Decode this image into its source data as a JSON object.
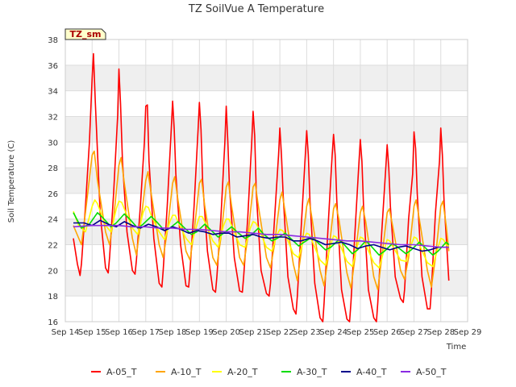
{
  "chart_data": {
    "type": "line",
    "title": "TZ SoilVue A Temperature",
    "xlabel": "Time",
    "ylabel": "Soil Temperature (C)",
    "site_badge": "TZ_sm",
    "xlim": [
      14,
      29
    ],
    "ylim": [
      16,
      38
    ],
    "x_ticks": [
      {
        "value": 14,
        "label": "Sep 14"
      },
      {
        "value": 15,
        "label": "Sep 15"
      },
      {
        "value": 16,
        "label": "Sep 16"
      },
      {
        "value": 17,
        "label": "Sep 17"
      },
      {
        "value": 18,
        "label": "Sep 18"
      },
      {
        "value": 19,
        "label": "Sep 19"
      },
      {
        "value": 20,
        "label": "Sep 20"
      },
      {
        "value": 21,
        "label": "Sep 21"
      },
      {
        "value": 22,
        "label": "Sep 22"
      },
      {
        "value": 23,
        "label": "Sep 23"
      },
      {
        "value": 24,
        "label": "Sep 24"
      },
      {
        "value": 25,
        "label": "Sep 25"
      },
      {
        "value": 26,
        "label": "Sep 26"
      },
      {
        "value": 27,
        "label": "Sep 27"
      },
      {
        "value": 28,
        "label": "Sep 28"
      },
      {
        "value": 29,
        "label": "Sep 29"
      }
    ],
    "y_ticks": [
      16,
      18,
      20,
      22,
      24,
      26,
      28,
      30,
      32,
      34,
      36,
      38
    ],
    "grid": true,
    "band_fill": "#efefef",
    "legend_position": "bottom",
    "x_unit_note": "x values are days of September 2024 (fractional day = time of day)",
    "series": [
      {
        "name": "A-05_T",
        "color": "#ff0000",
        "x": [
          14.3,
          14.45,
          14.55,
          14.6,
          14.75,
          14.9,
          15.0,
          15.05,
          15.12,
          15.3,
          15.5,
          15.6,
          15.65,
          15.8,
          15.95,
          16.0,
          16.06,
          16.13,
          16.3,
          16.5,
          16.6,
          16.65,
          16.8,
          16.95,
          17.0,
          17.06,
          17.12,
          17.3,
          17.5,
          17.6,
          17.65,
          17.8,
          17.95,
          18.0,
          18.06,
          18.12,
          18.3,
          18.5,
          18.6,
          18.65,
          18.8,
          18.95,
          19.0,
          19.06,
          19.12,
          19.3,
          19.5,
          19.6,
          19.65,
          19.8,
          19.95,
          20.0,
          20.06,
          20.12,
          20.3,
          20.5,
          20.6,
          20.65,
          20.8,
          20.95,
          21.0,
          21.06,
          21.12,
          21.3,
          21.5,
          21.6,
          21.65,
          21.8,
          21.95,
          22.0,
          22.06,
          22.12,
          22.3,
          22.5,
          22.6,
          22.65,
          22.8,
          22.95,
          23.0,
          23.06,
          23.12,
          23.3,
          23.5,
          23.6,
          23.65,
          23.8,
          23.95,
          24.0,
          24.06,
          24.12,
          24.3,
          24.5,
          24.6,
          24.65,
          24.8,
          24.95,
          25.0,
          25.06,
          25.12,
          25.3,
          25.5,
          25.6,
          25.65,
          25.8,
          25.95,
          26.0,
          26.06,
          26.12,
          26.3,
          26.5,
          26.6,
          26.65,
          26.8,
          26.95,
          27.0,
          27.06,
          27.12,
          27.3,
          27.5,
          27.6,
          27.65,
          27.8,
          27.95,
          28.0,
          28.06,
          28.12,
          28.3
        ],
        "y": [
          22.5,
          20.5,
          19.6,
          20.5,
          25.0,
          30.0,
          35.0,
          36.9,
          33.0,
          24.5,
          20.2,
          19.8,
          21.0,
          26.0,
          32.0,
          35.7,
          33.0,
          28.5,
          23.0,
          20.0,
          19.7,
          20.8,
          25.0,
          30.0,
          32.8,
          32.9,
          28.5,
          22.5,
          19.0,
          18.7,
          20.0,
          25.0,
          31.0,
          33.2,
          31.0,
          27.5,
          22.0,
          18.8,
          18.7,
          20.0,
          25.0,
          31.0,
          33.1,
          31.0,
          27.0,
          21.5,
          18.5,
          18.3,
          19.5,
          24.0,
          30.0,
          32.8,
          30.0,
          26.5,
          21.0,
          18.4,
          18.3,
          19.5,
          24.0,
          30.0,
          32.4,
          30.5,
          26.0,
          20.0,
          18.2,
          18.0,
          19.0,
          24.0,
          29.0,
          31.1,
          29.0,
          26.0,
          19.5,
          17.0,
          16.6,
          18.0,
          23.5,
          29.0,
          30.9,
          29.0,
          25.5,
          19.0,
          16.3,
          16.0,
          17.5,
          23.5,
          29.0,
          30.6,
          29.0,
          25.5,
          18.5,
          16.2,
          16.0,
          17.5,
          23.0,
          28.5,
          30.2,
          28.5,
          25.0,
          18.5,
          16.3,
          16.0,
          17.5,
          23.0,
          28.0,
          29.8,
          28.0,
          25.0,
          19.5,
          17.8,
          17.5,
          18.5,
          24.0,
          27.5,
          30.8,
          29.5,
          26.0,
          19.5,
          17.0,
          17.0,
          18.5,
          24.5,
          28.5,
          31.1,
          29.0,
          25.5,
          19.2
        ]
      },
      {
        "name": "A-10_T",
        "color": "#ffa500",
        "x": [
          14.3,
          14.6,
          14.75,
          15.0,
          15.08,
          15.2,
          15.5,
          15.65,
          15.8,
          16.0,
          16.08,
          16.2,
          16.5,
          16.65,
          16.8,
          17.0,
          17.08,
          17.2,
          17.5,
          17.65,
          17.8,
          18.0,
          18.08,
          18.2,
          18.5,
          18.65,
          18.8,
          19.0,
          19.08,
          19.2,
          19.5,
          19.65,
          19.8,
          20.0,
          20.08,
          20.2,
          20.5,
          20.65,
          20.8,
          21.0,
          21.08,
          21.2,
          21.5,
          21.65,
          21.8,
          22.0,
          22.08,
          22.2,
          22.5,
          22.65,
          22.8,
          23.0,
          23.08,
          23.2,
          23.5,
          23.65,
          23.8,
          24.0,
          24.08,
          24.2,
          24.5,
          24.65,
          24.8,
          25.0,
          25.08,
          25.2,
          25.5,
          25.65,
          25.8,
          26.0,
          26.08,
          26.2,
          26.5,
          26.65,
          26.8,
          27.0,
          27.08,
          27.2,
          27.5,
          27.65,
          27.8,
          28.0,
          28.08,
          28.2,
          28.3
        ],
        "y": [
          23.5,
          22.0,
          24.5,
          29.0,
          29.3,
          27.0,
          23.0,
          22.0,
          24.0,
          28.2,
          28.8,
          26.8,
          22.5,
          21.2,
          23.5,
          27.0,
          27.7,
          26.0,
          22.0,
          21.0,
          23.0,
          26.8,
          27.3,
          25.5,
          21.5,
          20.8,
          23.0,
          26.8,
          27.1,
          25.0,
          21.0,
          20.4,
          22.5,
          26.5,
          26.9,
          25.0,
          21.0,
          20.4,
          22.5,
          26.5,
          26.8,
          25.0,
          21.0,
          20.2,
          22.0,
          25.5,
          26.1,
          24.5,
          20.5,
          19.2,
          21.5,
          25.0,
          25.6,
          24.0,
          20.0,
          18.8,
          21.0,
          24.8,
          25.2,
          24.0,
          19.8,
          18.6,
          21.0,
          24.5,
          25.0,
          23.8,
          19.5,
          18.5,
          21.0,
          24.5,
          24.8,
          23.5,
          20.0,
          19.3,
          21.0,
          25.0,
          25.5,
          24.0,
          20.0,
          18.7,
          21.0,
          25.0,
          25.4,
          23.5,
          21.5
        ]
      },
      {
        "name": "A-20_T",
        "color": "#ffff00",
        "x": [
          14.3,
          14.5,
          14.75,
          15.0,
          15.1,
          15.2,
          15.5,
          15.7,
          15.9,
          16.0,
          16.1,
          16.2,
          16.5,
          16.7,
          16.9,
          17.0,
          17.1,
          17.2,
          17.5,
          17.7,
          17.9,
          18.0,
          18.1,
          18.2,
          18.5,
          18.7,
          18.9,
          19.0,
          19.1,
          19.2,
          19.5,
          19.7,
          19.9,
          20.0,
          20.1,
          20.2,
          20.5,
          20.7,
          20.9,
          21.0,
          21.1,
          21.2,
          21.5,
          21.7,
          21.9,
          22.0,
          22.1,
          22.2,
          22.5,
          22.7,
          22.9,
          23.0,
          23.1,
          23.2,
          23.5,
          23.7,
          23.9,
          24.0,
          24.1,
          24.2,
          24.5,
          24.7,
          24.9,
          25.0,
          25.1,
          25.2,
          25.5,
          25.7,
          25.9,
          26.0,
          26.1,
          26.2,
          26.5,
          26.7,
          26.9,
          27.0,
          27.1,
          27.2,
          27.5,
          27.7,
          27.9,
          28.0,
          28.1,
          28.2,
          28.3
        ],
        "y": [
          24.6,
          23.5,
          23.0,
          25.0,
          25.5,
          25.2,
          23.5,
          23.0,
          24.8,
          25.4,
          25.3,
          24.8,
          23.3,
          22.8,
          24.5,
          25.0,
          24.9,
          24.3,
          23.0,
          22.4,
          23.8,
          24.3,
          24.3,
          23.8,
          22.5,
          22.0,
          23.5,
          24.2,
          24.2,
          23.8,
          22.3,
          21.8,
          23.5,
          24.0,
          24.0,
          23.5,
          22.0,
          21.8,
          23.3,
          23.8,
          23.7,
          23.3,
          21.8,
          21.5,
          22.8,
          23.2,
          23.1,
          22.8,
          21.3,
          21.0,
          22.5,
          22.9,
          22.8,
          22.3,
          20.8,
          20.4,
          22.0,
          22.7,
          22.6,
          22.2,
          20.7,
          20.3,
          22.0,
          22.6,
          22.5,
          22.0,
          20.6,
          20.2,
          21.7,
          22.4,
          22.3,
          21.9,
          20.8,
          20.7,
          22.0,
          22.6,
          22.5,
          22.0,
          20.6,
          20.3,
          21.8,
          22.5,
          22.4,
          22.0,
          21.8
        ]
      },
      {
        "name": "A-30_T",
        "color": "#00dd00",
        "x": [
          14.3,
          14.6,
          14.9,
          15.2,
          15.4,
          15.7,
          15.9,
          16.2,
          16.4,
          16.7,
          16.9,
          17.2,
          17.4,
          17.7,
          17.9,
          18.2,
          18.4,
          18.7,
          18.9,
          19.2,
          19.4,
          19.7,
          19.9,
          20.2,
          20.4,
          20.7,
          20.9,
          21.2,
          21.4,
          21.7,
          21.9,
          22.2,
          22.4,
          22.7,
          22.9,
          23.2,
          23.4,
          23.7,
          23.9,
          24.2,
          24.4,
          24.7,
          24.9,
          25.2,
          25.4,
          25.7,
          25.9,
          26.2,
          26.4,
          26.7,
          26.9,
          27.2,
          27.4,
          27.7,
          27.9,
          28.2,
          28.3
        ],
        "y": [
          24.5,
          23.3,
          23.6,
          24.5,
          24.1,
          23.4,
          23.7,
          24.4,
          24.0,
          23.3,
          23.6,
          24.2,
          23.8,
          23.1,
          23.3,
          23.8,
          23.4,
          22.8,
          23.0,
          23.6,
          23.2,
          22.6,
          22.9,
          23.4,
          23.0,
          22.5,
          22.7,
          23.3,
          22.8,
          22.3,
          22.5,
          22.9,
          22.5,
          21.9,
          22.2,
          22.6,
          22.2,
          21.6,
          21.8,
          22.4,
          22.0,
          21.3,
          21.6,
          22.3,
          21.9,
          21.2,
          21.5,
          22.1,
          21.8,
          21.3,
          21.6,
          22.2,
          21.8,
          21.2,
          21.5,
          22.2,
          22.0
        ]
      },
      {
        "name": "A-40_T",
        "color": "#00008b",
        "x": [
          14.3,
          14.7,
          15.0,
          15.3,
          15.6,
          15.9,
          16.2,
          16.5,
          16.8,
          17.1,
          17.4,
          17.7,
          18.0,
          18.3,
          18.6,
          18.9,
          19.2,
          19.5,
          19.8,
          20.1,
          20.4,
          20.7,
          21.0,
          21.3,
          21.6,
          21.9,
          22.2,
          22.5,
          22.8,
          23.1,
          23.4,
          23.7,
          24.0,
          24.3,
          24.6,
          24.9,
          25.2,
          25.5,
          25.8,
          26.1,
          26.4,
          26.7,
          27.0,
          27.3,
          27.6,
          27.9,
          28.2,
          28.3
        ],
        "y": [
          23.7,
          23.7,
          23.5,
          23.9,
          23.6,
          23.4,
          23.8,
          23.5,
          23.3,
          23.6,
          23.4,
          23.1,
          23.4,
          23.2,
          22.9,
          23.1,
          23.0,
          22.8,
          22.9,
          22.9,
          22.6,
          22.7,
          22.8,
          22.6,
          22.5,
          22.6,
          22.6,
          22.3,
          22.3,
          22.5,
          22.3,
          22.0,
          22.1,
          22.2,
          22.0,
          21.7,
          21.9,
          22.0,
          21.8,
          21.6,
          21.8,
          21.9,
          21.7,
          21.5,
          21.6,
          21.8,
          21.8,
          21.8
        ]
      },
      {
        "name": "A-50_T",
        "color": "#8a2be2",
        "x": [
          14.3,
          15.0,
          15.5,
          16.0,
          16.5,
          17.0,
          17.5,
          18.0,
          18.5,
          19.0,
          19.5,
          20.0,
          20.5,
          21.0,
          21.5,
          22.0,
          22.5,
          23.0,
          23.5,
          24.0,
          24.5,
          25.0,
          25.5,
          26.0,
          26.5,
          27.0,
          27.5,
          28.0,
          28.3
        ],
        "y": [
          23.4,
          23.5,
          23.5,
          23.5,
          23.4,
          23.4,
          23.3,
          23.3,
          23.2,
          23.2,
          23.1,
          23.0,
          23.0,
          22.9,
          22.8,
          22.8,
          22.7,
          22.6,
          22.5,
          22.4,
          22.3,
          22.3,
          22.2,
          22.1,
          22.0,
          22.0,
          21.9,
          21.8,
          21.8
        ]
      }
    ]
  }
}
